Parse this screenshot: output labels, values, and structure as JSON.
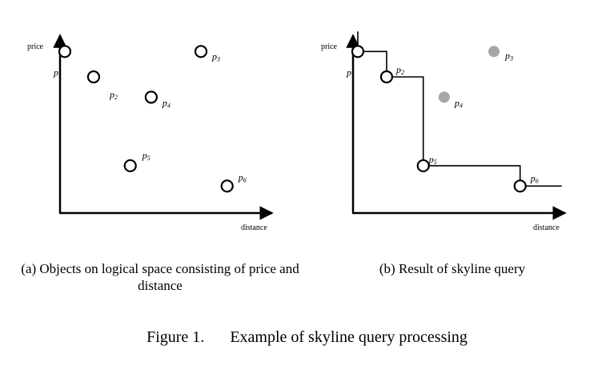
{
  "panel_a": {
    "y_axis_label": "price",
    "x_axis_label": "distance",
    "caption": "(a) Objects on logical space consisting of price and distance",
    "points": [
      {
        "id": "p1",
        "letter": "p",
        "sub": "1",
        "distance": 1.1,
        "price": 6.3,
        "style": "hollow"
      },
      {
        "id": "p2",
        "letter": "p",
        "sub": "2",
        "distance": 2.2,
        "price": 5.3,
        "style": "hollow"
      },
      {
        "id": "p3",
        "letter": "p",
        "sub": "3",
        "distance": 6.3,
        "price": 6.3,
        "style": "hollow"
      },
      {
        "id": "p4",
        "letter": "p",
        "sub": "4",
        "distance": 4.4,
        "price": 4.5,
        "style": "hollow"
      },
      {
        "id": "p5",
        "letter": "p",
        "sub": "5",
        "distance": 3.6,
        "price": 1.8,
        "style": "hollow"
      },
      {
        "id": "p6",
        "letter": "p",
        "sub": "6",
        "distance": 7.3,
        "price": 1.0,
        "style": "hollow"
      }
    ]
  },
  "panel_b": {
    "y_axis_label": "price",
    "x_axis_label": "distance",
    "caption": "(b) Result of skyline query",
    "points": [
      {
        "id": "p1",
        "letter": "p",
        "sub": "1",
        "distance": 1.1,
        "price": 6.3,
        "style": "hollow"
      },
      {
        "id": "p2",
        "letter": "p",
        "sub": "2",
        "distance": 2.2,
        "price": 5.3,
        "style": "hollow"
      },
      {
        "id": "p3",
        "letter": "p",
        "sub": "3",
        "distance": 6.3,
        "price": 6.3,
        "style": "filled"
      },
      {
        "id": "p4",
        "letter": "p",
        "sub": "4",
        "distance": 4.4,
        "price": 4.5,
        "style": "filled"
      },
      {
        "id": "p5",
        "letter": "p",
        "sub": "5",
        "distance": 3.6,
        "price": 1.8,
        "style": "hollow"
      },
      {
        "id": "p6",
        "letter": "p",
        "sub": "6",
        "distance": 7.3,
        "price": 1.0,
        "style": "hollow"
      }
    ],
    "skyline_order": [
      "p1",
      "p2",
      "p5",
      "p6"
    ]
  },
  "figure": {
    "number": "Figure 1.",
    "title": "Example of skyline query processing"
  },
  "colors": {
    "stroke": "#000000",
    "dominated_fill": "#a6a6a6"
  }
}
